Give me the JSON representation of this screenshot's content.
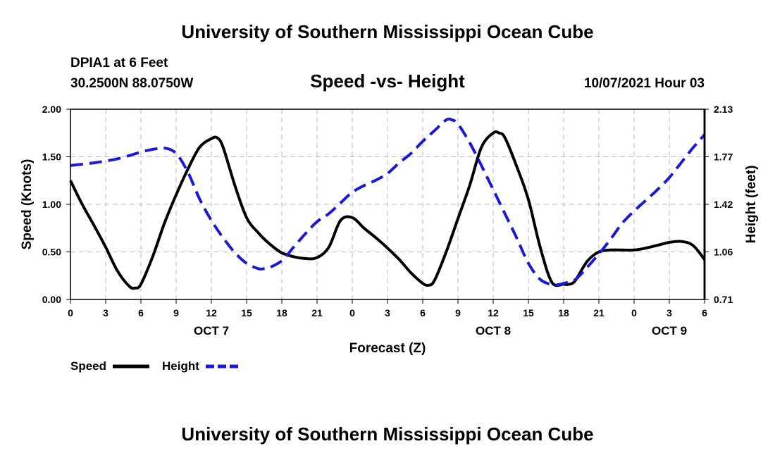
{
  "header": {
    "title": "University of Southern Mississippi Ocean Cube",
    "station": "DPIA1 at 6 Feet",
    "coords": "30.2500N  88.0750W",
    "datetime": "10/07/2021 Hour 03"
  },
  "footer": {
    "title": "University of Southern Mississippi Ocean Cube"
  },
  "colors": {
    "speed": "#000000",
    "height": "#1a1ad6",
    "grid": "#bbbbbb"
  },
  "chart_data": {
    "type": "line",
    "title": "Speed -vs- Height",
    "xlabel": "Forecast (Z)",
    "ylabel": "Speed (Knots)",
    "y2label": "Height (feet)",
    "xlim": [
      0,
      54
    ],
    "ylim": [
      0,
      2.0
    ],
    "y2lim": [
      0.71,
      2.13
    ],
    "x_ticks": [
      0,
      3,
      6,
      9,
      12,
      15,
      18,
      21,
      24,
      27,
      30,
      33,
      36,
      39,
      42,
      45,
      48,
      51,
      54
    ],
    "x_tick_labels": [
      "0",
      "3",
      "6",
      "9",
      "12",
      "15",
      "18",
      "21",
      "0",
      "3",
      "6",
      "9",
      "12",
      "15",
      "18",
      "21",
      "0",
      "3",
      "6"
    ],
    "y_ticks": [
      "0.00",
      "0.50",
      "1.00",
      "1.50",
      "2.00"
    ],
    "y2_ticks": [
      "0.71",
      "1.06",
      "1.42",
      "1.77",
      "2.13"
    ],
    "day_labels": [
      {
        "x": 12,
        "label": "OCT 7"
      },
      {
        "x": 36,
        "label": "OCT 8"
      },
      {
        "x": 51,
        "label": "OCT 9"
      }
    ],
    "legend": {
      "position": "bottom-left",
      "entries": [
        "Speed",
        "Height"
      ]
    },
    "series": [
      {
        "name": "Speed",
        "axis": "left",
        "style": "solid",
        "x": [
          0,
          1,
          2,
          3,
          4,
          5,
          5.5,
          6,
          7,
          8,
          9,
          10,
          11,
          12,
          12.5,
          13,
          14,
          15,
          16,
          17,
          18,
          19,
          20,
          21,
          22,
          23,
          24,
          25,
          26,
          27,
          28,
          29,
          30,
          30.5,
          31,
          32,
          33,
          34,
          35,
          36,
          36.5,
          37,
          38,
          39,
          40,
          41,
          42,
          42.5,
          43,
          44,
          45,
          46,
          47,
          48,
          49,
          50,
          51,
          52,
          53,
          54
        ],
        "values": [
          1.25,
          1.0,
          0.78,
          0.55,
          0.3,
          0.14,
          0.12,
          0.16,
          0.45,
          0.8,
          1.1,
          1.37,
          1.6,
          1.69,
          1.7,
          1.6,
          1.2,
          0.86,
          0.7,
          0.58,
          0.49,
          0.45,
          0.43,
          0.44,
          0.55,
          0.83,
          0.86,
          0.75,
          0.65,
          0.54,
          0.42,
          0.28,
          0.17,
          0.15,
          0.2,
          0.5,
          0.85,
          1.2,
          1.6,
          1.75,
          1.75,
          1.7,
          1.4,
          1.05,
          0.55,
          0.18,
          0.16,
          0.16,
          0.2,
          0.4,
          0.5,
          0.52,
          0.52,
          0.52,
          0.54,
          0.57,
          0.6,
          0.61,
          0.57,
          0.42
        ]
      },
      {
        "name": "Height",
        "axis": "right",
        "style": "dashed",
        "x": [
          0,
          2,
          4,
          6,
          7,
          8,
          9,
          10,
          11,
          12,
          13,
          14,
          15,
          16,
          16.5,
          17,
          18,
          19,
          20,
          21,
          22,
          23,
          24,
          25,
          26,
          27,
          28,
          29,
          30,
          31,
          32,
          32.5,
          33,
          34,
          35,
          36,
          37,
          38,
          39,
          40,
          41,
          41.5,
          42,
          43,
          44,
          45,
          46,
          47,
          48,
          49,
          50,
          51,
          52,
          53,
          54
        ],
        "values": [
          1.71,
          1.73,
          1.76,
          1.81,
          1.83,
          1.84,
          1.8,
          1.66,
          1.46,
          1.3,
          1.17,
          1.06,
          0.98,
          0.94,
          0.94,
          0.95,
          1.0,
          1.1,
          1.2,
          1.29,
          1.35,
          1.43,
          1.51,
          1.56,
          1.6,
          1.65,
          1.73,
          1.8,
          1.89,
          1.97,
          2.05,
          2.05,
          2.02,
          1.88,
          1.71,
          1.53,
          1.35,
          1.17,
          0.98,
          0.86,
          0.82,
          0.82,
          0.83,
          0.86,
          0.95,
          1.05,
          1.16,
          1.28,
          1.37,
          1.45,
          1.53,
          1.62,
          1.73,
          1.84,
          1.94
        ]
      }
    ]
  }
}
